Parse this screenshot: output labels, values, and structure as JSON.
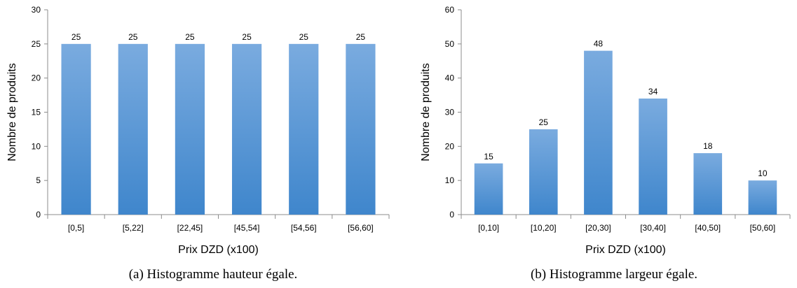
{
  "chart_data": [
    {
      "type": "bar",
      "categories": [
        "[0,5]",
        "[5,22]",
        "[22,45]",
        "[45,54]",
        "[54,56]",
        "[56,60]"
      ],
      "values": [
        25,
        25,
        25,
        25,
        25,
        25
      ],
      "data_labels": [
        "25",
        "25",
        "25",
        "25",
        "25",
        "25"
      ],
      "xlabel": "Prix DZD (x100)",
      "ylabel": "Nombre de produits",
      "ylim": [
        0,
        30
      ],
      "yticks": [
        0,
        5,
        10,
        15,
        20,
        25,
        30
      ],
      "ytick_labels": [
        "0",
        "5",
        "10",
        "15",
        "20",
        "25",
        "30"
      ],
      "grid": false,
      "caption": "(a) Histogramme hauteur égale."
    },
    {
      "type": "bar",
      "categories": [
        "[0,10]",
        "[10,20]",
        "[20,30]",
        "[30,40]",
        "[40,50]",
        "[50,60]"
      ],
      "values": [
        15,
        25,
        48,
        34,
        18,
        10
      ],
      "data_labels": [
        "15",
        "25",
        "48",
        "34",
        "18",
        "10"
      ],
      "xlabel": "Prix DZD (x100)",
      "ylabel": "Nombre de produits",
      "ylim": [
        0,
        60
      ],
      "yticks": [
        0,
        10,
        20,
        30,
        40,
        50,
        60
      ],
      "ytick_labels": [
        "0",
        "10",
        "20",
        "30",
        "40",
        "50",
        "60"
      ],
      "grid": false,
      "caption": "(b) Histogramme largeur égale."
    }
  ],
  "colors": {
    "bar_top": "#7aabdf",
    "bar_bottom": "#3f86cc",
    "axis": "#8c8c8c",
    "text": "#000000"
  }
}
